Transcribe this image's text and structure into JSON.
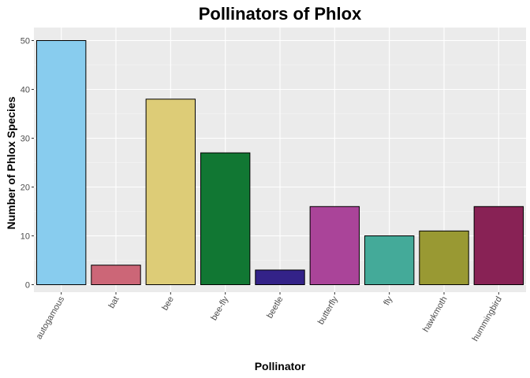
{
  "chart_data": {
    "type": "bar",
    "title": "Pollinators of Phlox",
    "xlabel": "Pollinator",
    "ylabel": "Number of Phlox Species",
    "categories": [
      "autogamous",
      "bat",
      "bee",
      "bee-fly",
      "beetle",
      "butterfly",
      "fly",
      "hawkmoth",
      "hummingbird"
    ],
    "values": [
      50,
      4,
      38,
      27,
      3,
      16,
      10,
      11,
      16
    ],
    "colors": [
      "#88ccee",
      "#cc6677",
      "#ddcc77",
      "#117733",
      "#332288",
      "#aa4499",
      "#44aa99",
      "#999933",
      "#882255"
    ],
    "ylim": [
      0,
      50
    ],
    "yticks": [
      0,
      10,
      20,
      30,
      40,
      50
    ],
    "grid": true,
    "panel_background": "#ebebeb",
    "bar_outline": "#000000",
    "legend": "none"
  }
}
